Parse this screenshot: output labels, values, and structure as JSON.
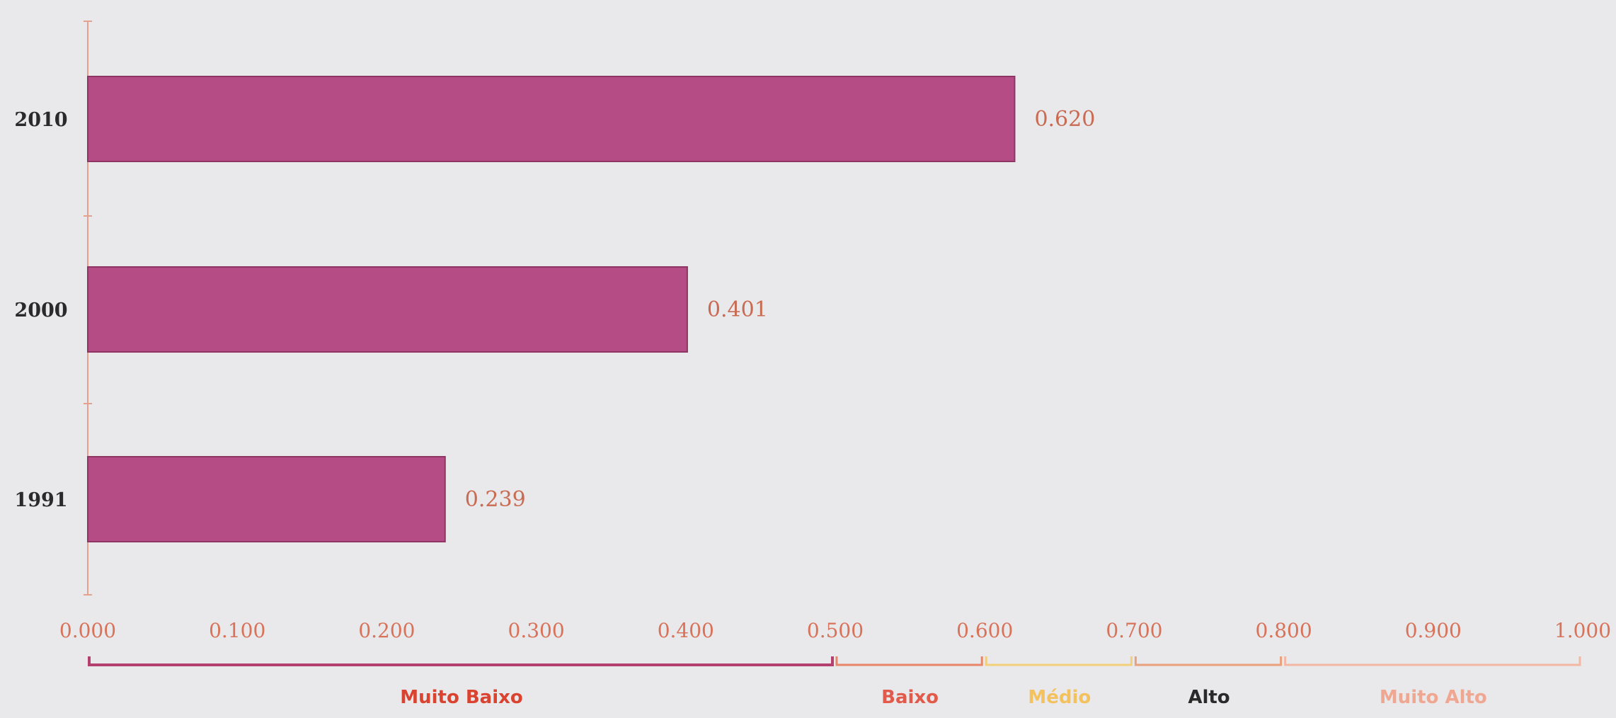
{
  "chart_data": {
    "type": "bar",
    "orientation": "horizontal",
    "categories": [
      "2010",
      "2000",
      "1991"
    ],
    "values": [
      0.62,
      0.401,
      0.239
    ],
    "data_labels": [
      "0.620",
      "0.401",
      "0.239"
    ],
    "xlim": [
      0,
      1
    ],
    "x_ticks": [
      0,
      0.1,
      0.2,
      0.3,
      0.4,
      0.5,
      0.6,
      0.7,
      0.8,
      0.9,
      1.0
    ],
    "x_tick_labels": [
      "0.000",
      "0.100",
      "0.200",
      "0.300",
      "0.400",
      "0.500",
      "0.600",
      "0.700",
      "0.800",
      "0.900",
      "1.000"
    ],
    "grid": false,
    "legend": "none",
    "bar_color": "#b64c86",
    "bands": [
      {
        "label": "Muito Baixo",
        "from": 0.0,
        "to": 0.5,
        "color": "#b3406f",
        "text_color": "#d9432f"
      },
      {
        "label": "Baixo",
        "from": 0.5,
        "to": 0.6,
        "color": "#e8866a",
        "text_color": "#e25a4a"
      },
      {
        "label": "Médio",
        "from": 0.6,
        "to": 0.7,
        "color": "#f4cf7a",
        "text_color": "#f3c25e"
      },
      {
        "label": "Alto",
        "from": 0.7,
        "to": 0.8,
        "color": "#e9a07c",
        "text_color": "#2a2a2a"
      },
      {
        "label": "Muito Alto",
        "from": 0.8,
        "to": 1.0,
        "color": "#f2b7a3",
        "text_color": "#f0a792"
      }
    ]
  }
}
